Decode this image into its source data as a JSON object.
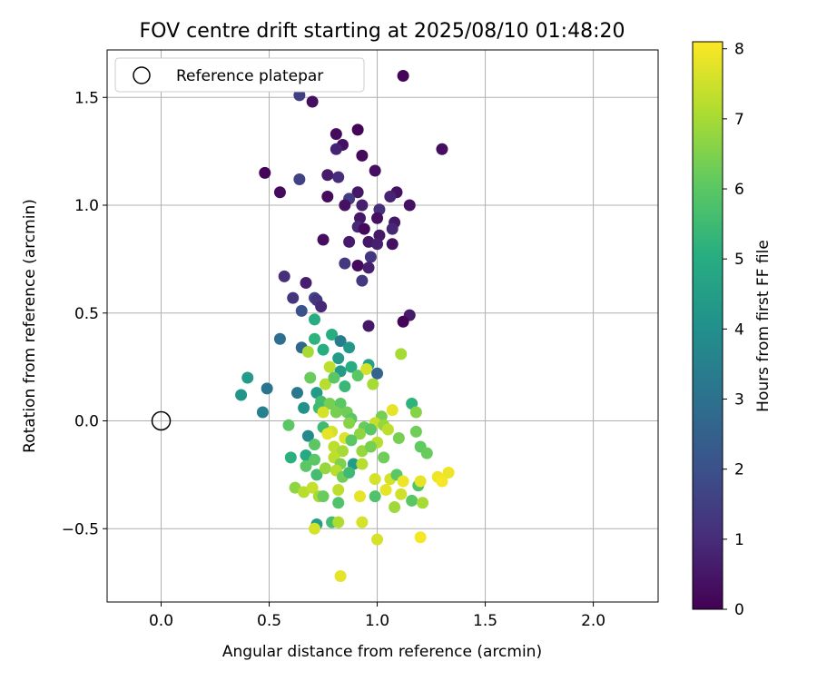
{
  "chart_data": {
    "type": "scatter",
    "title": "FOV centre drift starting at 2025/08/10 01:48:20",
    "xlabel": "Angular distance from reference (arcmin)",
    "ylabel": "Rotation from reference (arcmin)",
    "xlim": [
      -0.25,
      2.3
    ],
    "ylim": [
      -0.84,
      1.72
    ],
    "x_ticks": [
      0.0,
      0.5,
      1.0,
      1.5,
      2.0
    ],
    "x_tick_labels": [
      "0.0",
      "0.5",
      "1.0",
      "1.5",
      "2.0"
    ],
    "y_ticks": [
      -0.5,
      0.0,
      0.5,
      1.0,
      1.5
    ],
    "y_tick_labels": [
      "−0.5",
      "0.0",
      "0.5",
      "1.0",
      "1.5"
    ],
    "grid": true,
    "legend": {
      "position": "top-left",
      "label": "Reference platepar"
    },
    "reference_point": {
      "x": 0.0,
      "y": 0.0
    },
    "colorbar": {
      "label": "Hours from first FF file",
      "colormap": "viridis",
      "range": [
        0,
        8.1
      ],
      "ticks": [
        0,
        1,
        2,
        3,
        4,
        5,
        6,
        7,
        8
      ],
      "tick_labels": [
        "0",
        "1",
        "2",
        "3",
        "4",
        "5",
        "6",
        "7",
        "8"
      ]
    },
    "points": [
      [
        1.12,
        1.6,
        0.1
      ],
      [
        0.64,
        1.51,
        1.5
      ],
      [
        0.7,
        1.48,
        0.3
      ],
      [
        0.91,
        1.35,
        0.1
      ],
      [
        0.81,
        1.33,
        0.2
      ],
      [
        0.84,
        1.28,
        0.4
      ],
      [
        0.81,
        1.26,
        0.8
      ],
      [
        1.3,
        1.26,
        0.3
      ],
      [
        0.93,
        1.23,
        0.2
      ],
      [
        0.48,
        1.15,
        0.1
      ],
      [
        0.99,
        1.16,
        0.3
      ],
      [
        0.77,
        1.14,
        0.6
      ],
      [
        0.82,
        1.13,
        1.0
      ],
      [
        0.64,
        1.12,
        1.6
      ],
      [
        0.55,
        1.06,
        0.2
      ],
      [
        0.91,
        1.06,
        0.5
      ],
      [
        1.09,
        1.06,
        0.4
      ],
      [
        1.06,
        1.04,
        0.8
      ],
      [
        0.77,
        1.04,
        0.2
      ],
      [
        0.87,
        1.03,
        1.4
      ],
      [
        0.93,
        1.0,
        0.7
      ],
      [
        0.85,
        1.0,
        0.4
      ],
      [
        1.15,
        1.0,
        0.4
      ],
      [
        1.01,
        0.98,
        1.1
      ],
      [
        0.92,
        0.94,
        0.5
      ],
      [
        1.0,
        0.94,
        0.3
      ],
      [
        1.08,
        0.92,
        0.5
      ],
      [
        0.91,
        0.9,
        0.9
      ],
      [
        0.94,
        0.89,
        0.2
      ],
      [
        1.07,
        0.89,
        0.9
      ],
      [
        1.01,
        0.86,
        0.5
      ],
      [
        0.75,
        0.84,
        0.3
      ],
      [
        0.87,
        0.83,
        0.6
      ],
      [
        0.96,
        0.83,
        0.5
      ],
      [
        1.0,
        0.82,
        0.7
      ],
      [
        1.07,
        0.82,
        0.4
      ],
      [
        0.97,
        0.76,
        1.2
      ],
      [
        0.85,
        0.73,
        1.3
      ],
      [
        0.91,
        0.72,
        0.2
      ],
      [
        0.96,
        0.71,
        0.7
      ],
      [
        0.57,
        0.67,
        1.1
      ],
      [
        0.67,
        0.64,
        0.7
      ],
      [
        0.93,
        0.65,
        1.3
      ],
      [
        0.61,
        0.57,
        1.2
      ],
      [
        0.71,
        0.57,
        1.7
      ],
      [
        0.72,
        0.56,
        1.2
      ],
      [
        0.74,
        0.53,
        0.9
      ],
      [
        0.65,
        0.51,
        2.0
      ],
      [
        1.15,
        0.49,
        0.6
      ],
      [
        1.12,
        0.46,
        0.1
      ],
      [
        0.96,
        0.44,
        0.5
      ],
      [
        0.71,
        0.47,
        5.0
      ],
      [
        0.55,
        0.38,
        2.9
      ],
      [
        0.65,
        0.34,
        2.7
      ],
      [
        0.71,
        0.38,
        5.2
      ],
      [
        0.79,
        0.4,
        5.0
      ],
      [
        0.83,
        0.37,
        3.4
      ],
      [
        0.87,
        0.34,
        4.3
      ],
      [
        0.68,
        0.32,
        7.0
      ],
      [
        0.75,
        0.33,
        5.0
      ],
      [
        1.11,
        0.31,
        7.0
      ],
      [
        0.82,
        0.29,
        4.4
      ],
      [
        0.88,
        0.25,
        5.0
      ],
      [
        0.78,
        0.25,
        7.3
      ],
      [
        0.83,
        0.23,
        4.4
      ],
      [
        0.91,
        0.21,
        6.0
      ],
      [
        0.96,
        0.26,
        4.6
      ],
      [
        0.95,
        0.24,
        7.6
      ],
      [
        1.0,
        0.22,
        2.6
      ],
      [
        0.4,
        0.2,
        4.4
      ],
      [
        0.37,
        0.12,
        4.2
      ],
      [
        0.49,
        0.15,
        3.1
      ],
      [
        0.63,
        0.13,
        3.2
      ],
      [
        0.72,
        0.13,
        4.4
      ],
      [
        0.76,
        0.17,
        7.2
      ],
      [
        0.8,
        0.2,
        6.0
      ],
      [
        0.85,
        0.16,
        5.4
      ],
      [
        0.98,
        0.17,
        7.0
      ],
      [
        0.69,
        0.2,
        6.2
      ],
      [
        0.74,
        0.09,
        5.6
      ],
      [
        0.78,
        0.08,
        6.4
      ],
      [
        0.83,
        0.08,
        6.0
      ],
      [
        0.86,
        0.04,
        6.3
      ],
      [
        1.07,
        0.05,
        7.8
      ],
      [
        1.16,
        0.08,
        5.2
      ],
      [
        1.18,
        0.04,
        6.6
      ],
      [
        0.47,
        0.04,
        3.5
      ],
      [
        0.66,
        0.06,
        4.1
      ],
      [
        0.73,
        0.06,
        5.5
      ],
      [
        0.75,
        0.04,
        7.6
      ],
      [
        0.81,
        0.04,
        6.4
      ],
      [
        0.88,
        0.01,
        6.0
      ],
      [
        1.02,
        0.02,
        6.4
      ],
      [
        0.59,
        -0.02,
        6.0
      ],
      [
        0.75,
        -0.03,
        5.5
      ],
      [
        0.79,
        -0.05,
        7.6
      ],
      [
        0.87,
        -0.01,
        6.6
      ],
      [
        0.94,
        -0.03,
        6.2
      ],
      [
        0.99,
        -0.01,
        7.4
      ],
      [
        1.03,
        -0.02,
        6.8
      ],
      [
        0.68,
        -0.07,
        3.8
      ],
      [
        0.77,
        -0.06,
        7.8
      ],
      [
        0.85,
        -0.08,
        7.7
      ],
      [
        0.92,
        -0.06,
        6.7
      ],
      [
        0.97,
        -0.04,
        6.0
      ],
      [
        1.05,
        -0.04,
        7.3
      ],
      [
        1.18,
        -0.05,
        6.3
      ],
      [
        0.71,
        -0.11,
        6.0
      ],
      [
        0.8,
        -0.12,
        7.3
      ],
      [
        0.84,
        -0.14,
        7.0
      ],
      [
        0.88,
        -0.09,
        6.0
      ],
      [
        0.93,
        -0.14,
        6.8
      ],
      [
        1.0,
        -0.1,
        7.2
      ],
      [
        1.1,
        -0.08,
        6.4
      ],
      [
        1.2,
        -0.12,
        6.1
      ],
      [
        0.6,
        -0.17,
        5.1
      ],
      [
        0.67,
        -0.16,
        4.9
      ],
      [
        0.71,
        -0.18,
        6.0
      ],
      [
        0.8,
        -0.17,
        7.3
      ],
      [
        0.83,
        -0.2,
        6.5
      ],
      [
        0.89,
        -0.2,
        4.4
      ],
      [
        0.93,
        -0.2,
        7.2
      ],
      [
        0.97,
        -0.12,
        6.4
      ],
      [
        1.03,
        -0.17,
        6.3
      ],
      [
        1.23,
        -0.15,
        6.2
      ],
      [
        0.67,
        -0.21,
        6.0
      ],
      [
        0.72,
        -0.25,
        5.6
      ],
      [
        0.76,
        -0.22,
        6.8
      ],
      [
        0.81,
        -0.23,
        7.2
      ],
      [
        0.84,
        -0.26,
        6.3
      ],
      [
        0.87,
        -0.24,
        5.5
      ],
      [
        0.99,
        -0.27,
        7.6
      ],
      [
        1.06,
        -0.27,
        7.6
      ],
      [
        1.09,
        -0.25,
        6.0
      ],
      [
        1.12,
        -0.28,
        7.9
      ],
      [
        1.19,
        -0.3,
        5.8
      ],
      [
        1.2,
        -0.28,
        7.8
      ],
      [
        1.28,
        -0.26,
        7.9
      ],
      [
        1.3,
        -0.28,
        8.0
      ],
      [
        1.33,
        -0.24,
        7.9
      ],
      [
        0.62,
        -0.31,
        6.7
      ],
      [
        0.66,
        -0.33,
        7.2
      ],
      [
        0.7,
        -0.31,
        7.4
      ],
      [
        0.73,
        -0.35,
        7.0
      ],
      [
        0.75,
        -0.35,
        6.2
      ],
      [
        0.82,
        -0.32,
        7.3
      ],
      [
        0.92,
        -0.35,
        7.8
      ],
      [
        0.99,
        -0.35,
        5.8
      ],
      [
        1.04,
        -0.32,
        7.8
      ],
      [
        1.11,
        -0.34,
        7.5
      ],
      [
        1.16,
        -0.37,
        6.0
      ],
      [
        1.21,
        -0.38,
        7.0
      ],
      [
        1.08,
        -0.4,
        6.9
      ],
      [
        0.82,
        -0.38,
        5.8
      ],
      [
        0.72,
        -0.48,
        4.5
      ],
      [
        0.79,
        -0.47,
        5.6
      ],
      [
        0.82,
        -0.47,
        7.1
      ],
      [
        0.93,
        -0.47,
        7.6
      ],
      [
        0.71,
        -0.5,
        7.6
      ],
      [
        1.0,
        -0.55,
        7.6
      ],
      [
        1.2,
        -0.54,
        8.0
      ],
      [
        0.83,
        -0.72,
        7.8
      ]
    ]
  }
}
